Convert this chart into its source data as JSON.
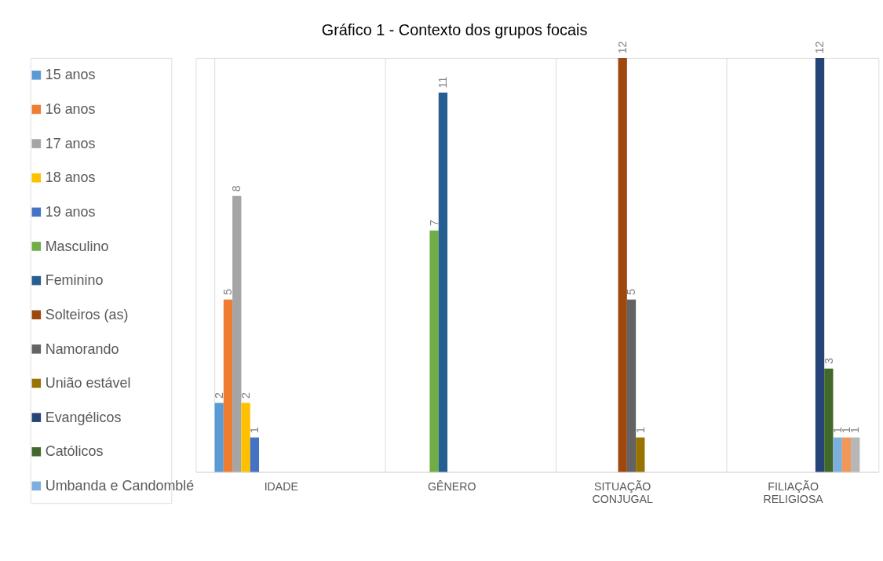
{
  "chart_data": {
    "type": "bar",
    "title": "Gráfico 1 - Contexto dos grupos focais",
    "categories": [
      "IDADE",
      "GÊNERO",
      "SITUAÇÃO CONJUGAL",
      "FILIAÇÃO RELIGIOSA"
    ],
    "series": [
      {
        "name": "15 anos",
        "color": "#5b9bd5",
        "values": [
          2,
          null,
          null,
          null
        ]
      },
      {
        "name": "16 anos",
        "color": "#ed7d31",
        "values": [
          5,
          null,
          null,
          null
        ]
      },
      {
        "name": "17 anos",
        "color": "#a5a5a5",
        "values": [
          8,
          null,
          null,
          null
        ]
      },
      {
        "name": "18 anos",
        "color": "#ffc000",
        "values": [
          2,
          null,
          null,
          null
        ]
      },
      {
        "name": "19 anos",
        "color": "#4472c4",
        "values": [
          1,
          null,
          null,
          null
        ]
      },
      {
        "name": "Masculino",
        "color": "#70ad47",
        "values": [
          null,
          7,
          null,
          null
        ]
      },
      {
        "name": "Feminino",
        "color": "#255e91",
        "values": [
          null,
          11,
          null,
          null
        ]
      },
      {
        "name": "Solteiros (as)",
        "color": "#9e480e",
        "values": [
          null,
          null,
          12,
          null
        ]
      },
      {
        "name": "Namorando",
        "color": "#636363",
        "values": [
          null,
          null,
          5,
          null
        ]
      },
      {
        "name": "União estável",
        "color": "#997300",
        "values": [
          null,
          null,
          1,
          null
        ]
      },
      {
        "name": "Evangélicos",
        "color": "#264478",
        "values": [
          null,
          null,
          null,
          12
        ]
      },
      {
        "name": "Católicos",
        "color": "#43682b",
        "values": [
          null,
          null,
          null,
          3
        ]
      },
      {
        "name": "Umbanda e Candomblé",
        "color": "#7cafdd",
        "values": [
          null,
          null,
          null,
          1
        ]
      },
      {
        "color": "#f1975a",
        "values": [
          null,
          null,
          null,
          1
        ]
      },
      {
        "color": "#b7b7b7",
        "values": [
          null,
          null,
          null,
          1
        ]
      }
    ],
    "data_labels": true,
    "grid": "x",
    "legend": "left"
  }
}
